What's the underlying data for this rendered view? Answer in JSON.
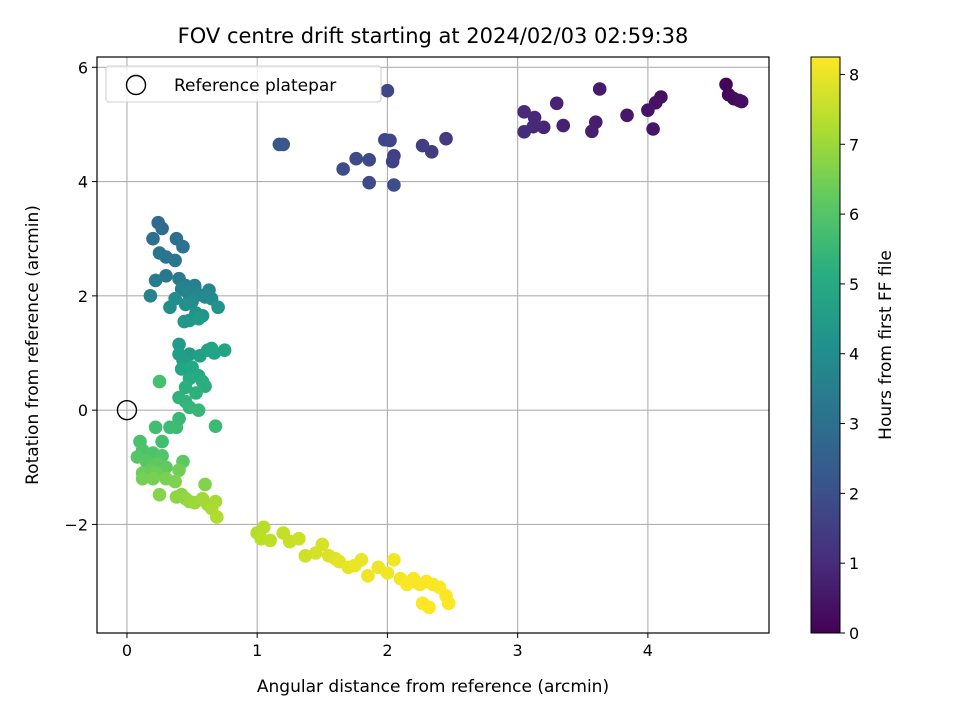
{
  "chart_data": {
    "type": "scatter",
    "title": "FOV centre drift starting at 2024/02/03 02:59:38",
    "xlabel": "Angular distance from reference (arcmin)",
    "ylabel": "Rotation from reference (arcmin)",
    "xlim": [
      -0.23,
      4.93
    ],
    "ylim": [
      -3.9,
      6.18
    ],
    "xticks": [
      0,
      1,
      2,
      3,
      4
    ],
    "yticks": [
      -2,
      0,
      2,
      4,
      6
    ],
    "xtick_labels": [
      "0",
      "1",
      "2",
      "3",
      "4"
    ],
    "ytick_labels": [
      "−2",
      "0",
      "2",
      "4",
      "6"
    ],
    "grid": true,
    "legend": {
      "location": "top-left",
      "entries": [
        {
          "label": "Reference platepar",
          "marker": "open-circle"
        }
      ]
    },
    "reference_point": {
      "x": 0,
      "y": 0
    },
    "colorbar": {
      "label": "Hours from first FF file",
      "colormap": "viridis",
      "range": [
        0,
        8.25
      ],
      "ticks": [
        0,
        1,
        2,
        3,
        4,
        5,
        6,
        7,
        8
      ],
      "tick_labels": [
        "0",
        "1",
        "2",
        "3",
        "4",
        "5",
        "6",
        "7",
        "8"
      ]
    },
    "points": [
      [
        4.6,
        5.7,
        0.1
      ],
      [
        4.62,
        5.52,
        0.15
      ],
      [
        4.66,
        5.45,
        0.2
      ],
      [
        4.7,
        5.42,
        0.25
      ],
      [
        4.72,
        5.4,
        0.3
      ],
      [
        4.1,
        5.48,
        0.35
      ],
      [
        4.06,
        5.38,
        0.4
      ],
      [
        4.0,
        5.25,
        0.45
      ],
      [
        4.04,
        4.92,
        0.5
      ],
      [
        3.84,
        5.16,
        0.55
      ],
      [
        3.63,
        5.62,
        0.6
      ],
      [
        3.6,
        5.04,
        0.65
      ],
      [
        3.57,
        4.88,
        0.7
      ],
      [
        3.35,
        4.98,
        0.75
      ],
      [
        3.3,
        5.37,
        0.8
      ],
      [
        3.2,
        4.95,
        0.85
      ],
      [
        3.13,
        5.12,
        0.9
      ],
      [
        3.12,
        4.96,
        0.95
      ],
      [
        3.05,
        5.22,
        1.0
      ],
      [
        3.05,
        4.87,
        1.05
      ],
      [
        2.45,
        4.75,
        1.4
      ],
      [
        2.34,
        4.52,
        1.45
      ],
      [
        2.27,
        4.63,
        1.5
      ],
      [
        2.05,
        4.45,
        1.55
      ],
      [
        2.04,
        4.35,
        1.6
      ],
      [
        2.02,
        4.72,
        1.65
      ],
      [
        2.0,
        5.59,
        1.7
      ],
      [
        1.98,
        4.73,
        1.75
      ],
      [
        1.86,
        4.38,
        1.8
      ],
      [
        1.86,
        3.98,
        1.85
      ],
      [
        1.76,
        4.4,
        1.9
      ],
      [
        1.66,
        4.22,
        1.95
      ],
      [
        2.05,
        3.94,
        2.0
      ],
      [
        1.2,
        4.65,
        2.2
      ],
      [
        1.17,
        4.65,
        2.25
      ],
      [
        0.24,
        3.28,
        2.9
      ],
      [
        0.27,
        3.18,
        2.95
      ],
      [
        0.2,
        3.0,
        3.0
      ],
      [
        0.38,
        3.0,
        3.05
      ],
      [
        0.43,
        2.86,
        3.1
      ],
      [
        0.25,
        2.75,
        3.15
      ],
      [
        0.3,
        2.68,
        3.2
      ],
      [
        0.37,
        2.62,
        3.25
      ],
      [
        0.3,
        2.35,
        3.3
      ],
      [
        0.4,
        2.3,
        3.35
      ],
      [
        0.22,
        2.27,
        3.4
      ],
      [
        0.52,
        2.18,
        3.45
      ],
      [
        0.45,
        2.18,
        3.5
      ],
      [
        0.52,
        2.15,
        3.55
      ],
      [
        0.42,
        2.12,
        3.6
      ],
      [
        0.18,
        2.0,
        3.65
      ],
      [
        0.47,
        2.05,
        3.7
      ],
      [
        0.55,
        2.02,
        3.75
      ],
      [
        0.63,
        2.1,
        3.8
      ],
      [
        0.6,
        1.98,
        3.85
      ],
      [
        0.65,
        1.95,
        3.9
      ],
      [
        0.37,
        1.95,
        3.95
      ],
      [
        0.5,
        1.9,
        4.0
      ],
      [
        0.45,
        1.85,
        4.05
      ],
      [
        0.33,
        1.8,
        4.1
      ],
      [
        0.7,
        1.8,
        4.15
      ],
      [
        0.53,
        1.7,
        4.2
      ],
      [
        0.58,
        1.65,
        4.25
      ],
      [
        0.48,
        1.57,
        4.3
      ],
      [
        0.44,
        1.55,
        4.35
      ],
      [
        0.55,
        1.6,
        4.4
      ],
      [
        0.4,
        1.15,
        4.45
      ],
      [
        0.48,
        0.98,
        4.5
      ],
      [
        0.4,
        0.98,
        4.55
      ],
      [
        0.43,
        0.88,
        4.6
      ],
      [
        0.56,
        0.95,
        4.65
      ],
      [
        0.62,
        1.05,
        4.7
      ],
      [
        0.67,
        1.0,
        4.75
      ],
      [
        0.75,
        1.05,
        4.8
      ],
      [
        0.65,
        1.08,
        4.85
      ],
      [
        0.42,
        0.72,
        4.9
      ],
      [
        0.5,
        0.75,
        4.95
      ],
      [
        0.55,
        0.6,
        5.0
      ],
      [
        0.48,
        0.55,
        5.05
      ],
      [
        0.58,
        0.5,
        5.1
      ],
      [
        0.6,
        0.42,
        5.15
      ],
      [
        0.45,
        0.4,
        5.2
      ],
      [
        0.53,
        0.3,
        5.25
      ],
      [
        0.4,
        0.22,
        5.3
      ],
      [
        0.45,
        0.15,
        5.35
      ],
      [
        0.48,
        0.05,
        5.4
      ],
      [
        0.55,
        0.0,
        5.45
      ],
      [
        0.4,
        -0.15,
        5.5
      ],
      [
        0.68,
        -0.28,
        5.55
      ],
      [
        0.38,
        -0.3,
        5.6
      ],
      [
        0.33,
        -0.3,
        5.65
      ],
      [
        0.22,
        -0.3,
        5.7
      ],
      [
        0.27,
        -0.55,
        5.75
      ],
      [
        0.25,
        0.5,
        5.8
      ],
      [
        0.1,
        -0.55,
        5.85
      ],
      [
        0.12,
        -0.7,
        5.9
      ],
      [
        0.2,
        -0.75,
        5.95
      ],
      [
        0.27,
        -0.8,
        6.0
      ],
      [
        0.08,
        -0.82,
        6.05
      ],
      [
        0.15,
        -0.9,
        6.1
      ],
      [
        0.43,
        -0.9,
        6.15
      ],
      [
        0.23,
        -0.95,
        6.2
      ],
      [
        0.3,
        -1.0,
        6.25
      ],
      [
        0.18,
        -1.05,
        6.3
      ],
      [
        0.12,
        -1.1,
        6.35
      ],
      [
        0.22,
        -1.1,
        6.4
      ],
      [
        0.4,
        -1.05,
        6.45
      ],
      [
        0.12,
        -1.2,
        6.5
      ],
      [
        0.2,
        -1.2,
        6.55
      ],
      [
        0.3,
        -1.2,
        6.6
      ],
      [
        0.37,
        -1.25,
        6.65
      ],
      [
        0.6,
        -1.3,
        6.7
      ],
      [
        0.25,
        -1.48,
        6.75
      ],
      [
        0.42,
        -1.48,
        6.8
      ],
      [
        0.38,
        -1.52,
        6.85
      ],
      [
        0.45,
        -1.55,
        6.9
      ],
      [
        0.48,
        -1.6,
        6.95
      ],
      [
        0.52,
        -1.62,
        7.0
      ],
      [
        0.58,
        -1.55,
        7.05
      ],
      [
        0.62,
        -1.65,
        7.1
      ],
      [
        0.68,
        -1.6,
        7.15
      ],
      [
        0.65,
        -1.72,
        7.2
      ],
      [
        0.69,
        -1.87,
        7.25
      ],
      [
        1.0,
        -2.15,
        7.3
      ],
      [
        1.05,
        -2.05,
        7.35
      ],
      [
        1.03,
        -2.25,
        7.4
      ],
      [
        1.1,
        -2.28,
        7.45
      ],
      [
        1.2,
        -2.15,
        7.5
      ],
      [
        1.25,
        -2.3,
        7.55
      ],
      [
        1.32,
        -2.25,
        7.6
      ],
      [
        1.37,
        -2.55,
        7.65
      ],
      [
        1.45,
        -2.5,
        7.7
      ],
      [
        1.5,
        -2.35,
        7.75
      ],
      [
        1.55,
        -2.55,
        7.8
      ],
      [
        1.6,
        -2.6,
        7.85
      ],
      [
        1.63,
        -2.65,
        7.9
      ],
      [
        1.7,
        -2.75,
        7.95
      ],
      [
        1.75,
        -2.72,
        8.0
      ],
      [
        1.8,
        -2.62,
        8.0
      ],
      [
        1.85,
        -2.9,
        8.05
      ],
      [
        1.93,
        -2.75,
        8.05
      ],
      [
        2.0,
        -2.85,
        8.1
      ],
      [
        2.05,
        -2.62,
        8.1
      ],
      [
        2.1,
        -2.95,
        8.12
      ],
      [
        2.2,
        -3.0,
        8.14
      ],
      [
        2.25,
        -3.05,
        8.16
      ],
      [
        2.3,
        -3.0,
        8.18
      ],
      [
        2.35,
        -3.05,
        8.2
      ],
      [
        2.4,
        -3.1,
        8.22
      ],
      [
        2.45,
        -3.25,
        8.24
      ],
      [
        2.47,
        -3.38,
        8.25
      ],
      [
        2.27,
        -3.38,
        8.25
      ],
      [
        2.32,
        -3.45,
        8.25
      ],
      [
        2.2,
        -2.95,
        8.2
      ],
      [
        2.15,
        -3.05,
        8.2
      ]
    ]
  }
}
